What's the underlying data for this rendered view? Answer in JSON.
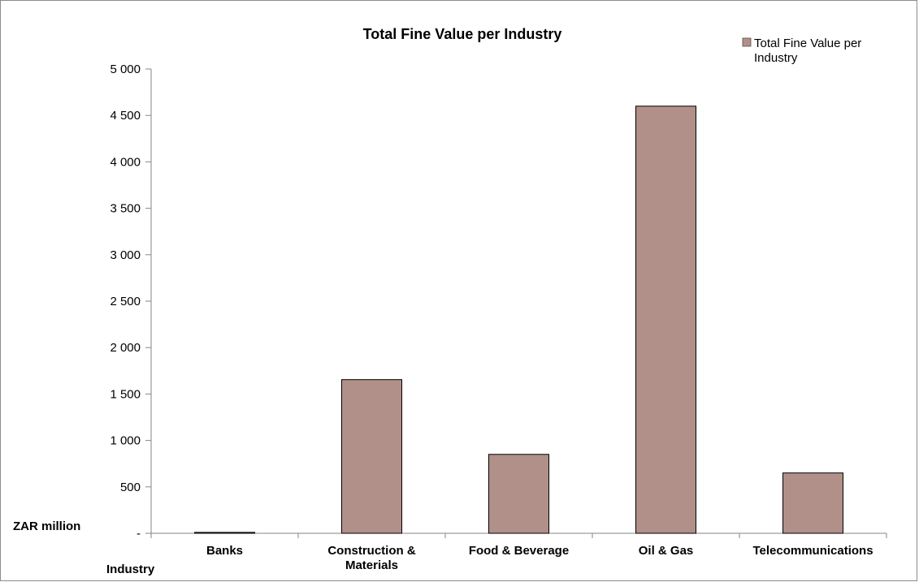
{
  "chart_data": {
    "type": "bar",
    "title": "Total Fine Value per Industry",
    "ylabel": "ZAR million",
    "xlabel": "Industry",
    "categories": [
      "Banks",
      "Construction & Materials",
      "Food & Beverage",
      "Oil & Gas",
      "Telecommunications"
    ],
    "category_lines": [
      [
        "Banks"
      ],
      [
        "Construction &",
        "Materials"
      ],
      [
        "Food & Beverage"
      ],
      [
        "Oil & Gas"
      ],
      [
        "Telecommunications"
      ]
    ],
    "series": [
      {
        "name": "Total Fine Value per Industry",
        "values": [
          10,
          1655,
          850,
          4600,
          650
        ],
        "color": "#b09089"
      }
    ],
    "legend_lines": [
      "Total Fine Value per",
      "Industry"
    ],
    "ylim": [
      0,
      5000
    ],
    "yticks": [
      0,
      500,
      1000,
      1500,
      2000,
      2500,
      3000,
      3500,
      4000,
      4500,
      5000
    ],
    "ytick_labels": [
      "-",
      "500",
      "1 000",
      "1 500",
      "2 000",
      "2 500",
      "3 000",
      "3 500",
      "4 000",
      "4 500",
      "5 000"
    ],
    "grid": false,
    "legend_position": "top-right"
  }
}
